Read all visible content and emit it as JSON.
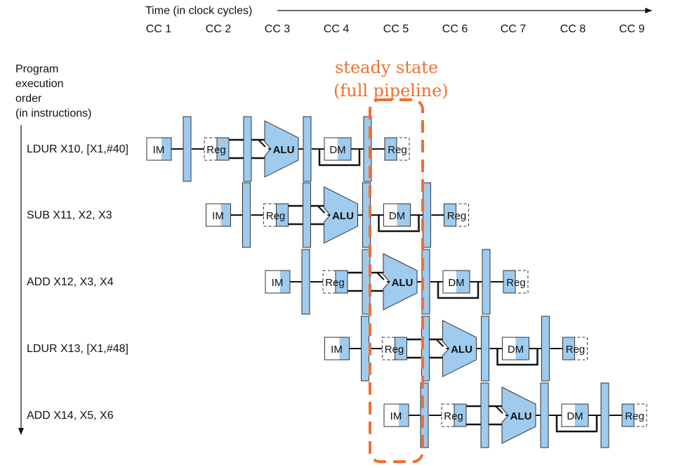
{
  "header": {
    "time_label": "Time (in clock cycles)",
    "cycles": [
      "CC 1",
      "CC 2",
      "CC 3",
      "CC 4",
      "CC 5",
      "CC 6",
      "CC 7",
      "CC 8",
      "CC 9"
    ]
  },
  "side": {
    "order_lines": [
      "Program",
      "execution",
      "order",
      "(in instructions)"
    ]
  },
  "instructions": [
    {
      "label": "LDUR X10, [X1,#40]"
    },
    {
      "label": "SUB X11, X2, X3"
    },
    {
      "label": "ADD X12, X3, X4"
    },
    {
      "label": "LDUR X13, [X1,#48]"
    },
    {
      "label": "ADD X14, X5, X6"
    }
  ],
  "stages": {
    "im": "IM",
    "reg": "Reg",
    "alu": "ALU",
    "dm": "DM"
  },
  "annotation": {
    "line1": "steady state",
    "line2": "(full pipeline)",
    "color": "#f07030"
  },
  "colors": {
    "stage_fill": "#9ecbee",
    "stroke": "#333333",
    "text": "#111111"
  }
}
